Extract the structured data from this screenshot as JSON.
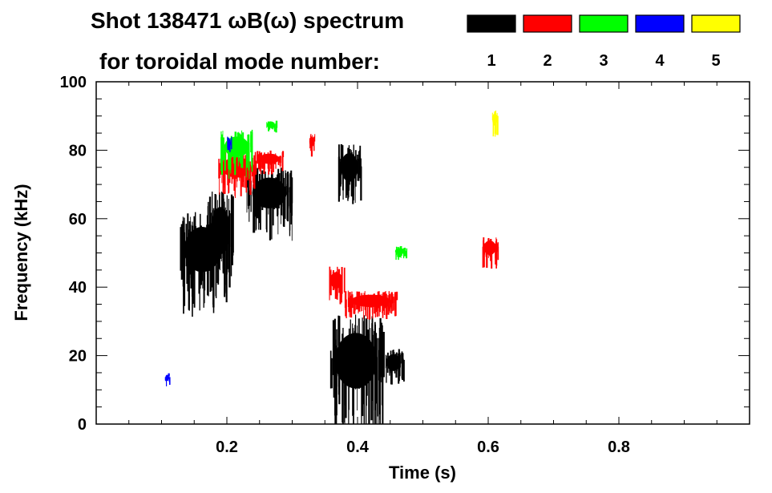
{
  "chart_data": {
    "type": "heatmap",
    "title_line1": "Shot 138471 ωB(ω) spectrum",
    "title_line2": "for toroidal mode number:",
    "xlabel": "Time (s)",
    "ylabel": "Frequency (kHz)",
    "xlim": [
      0.0,
      1.0
    ],
    "ylim": [
      0,
      100
    ],
    "x_ticks": [
      0.2,
      0.4,
      0.6,
      0.8
    ],
    "x_tick_labels": [
      "0.2",
      "0.4",
      "0.6",
      "0.8"
    ],
    "y_ticks": [
      0,
      20,
      40,
      60,
      80,
      100
    ],
    "y_tick_labels": [
      "0",
      "20",
      "40",
      "60",
      "80",
      "100"
    ],
    "legend": [
      {
        "mode": "1",
        "color": "#000000"
      },
      {
        "mode": "2",
        "color": "#ff0000"
      },
      {
        "mode": "3",
        "color": "#00ff00"
      },
      {
        "mode": "4",
        "color": "#0000ff"
      },
      {
        "mode": "5",
        "color": "#ffff00"
      }
    ],
    "series": [
      {
        "name": "n=1",
        "color": "#000000",
        "regions": [
          {
            "t0": 0.125,
            "t1": 0.2,
            "f0": 40,
            "f1": 62
          },
          {
            "t0": 0.17,
            "t1": 0.21,
            "f0": 45,
            "f1": 68
          },
          {
            "t0": 0.23,
            "t1": 0.3,
            "f0": 60,
            "f1": 75
          },
          {
            "t0": 0.37,
            "t1": 0.405,
            "f0": 68,
            "f1": 82
          },
          {
            "t0": 0.355,
            "t1": 0.44,
            "f0": 5,
            "f1": 32
          },
          {
            "t0": 0.44,
            "t1": 0.47,
            "f0": 14,
            "f1": 22
          }
        ]
      },
      {
        "name": "n=2",
        "color": "#ff0000",
        "regions": [
          {
            "t0": 0.185,
            "t1": 0.245,
            "f0": 70,
            "f1": 80
          },
          {
            "t0": 0.245,
            "t1": 0.285,
            "f0": 75,
            "f1": 80
          },
          {
            "t0": 0.325,
            "t1": 0.335,
            "f0": 80,
            "f1": 85
          },
          {
            "t0": 0.355,
            "t1": 0.38,
            "f0": 38,
            "f1": 46
          },
          {
            "t0": 0.38,
            "t1": 0.46,
            "f0": 33,
            "f1": 39
          },
          {
            "t0": 0.59,
            "t1": 0.615,
            "f0": 48,
            "f1": 55
          }
        ]
      },
      {
        "name": "n=3",
        "color": "#00ff00",
        "regions": [
          {
            "t0": 0.19,
            "t1": 0.24,
            "f0": 76,
            "f1": 86
          },
          {
            "t0": 0.26,
            "t1": 0.275,
            "f0": 86,
            "f1": 89
          },
          {
            "t0": 0.455,
            "t1": 0.475,
            "f0": 49,
            "f1": 52
          }
        ]
      },
      {
        "name": "n=4",
        "color": "#0000ff",
        "regions": [
          {
            "t0": 0.105,
            "t1": 0.112,
            "f0": 12,
            "f1": 15
          },
          {
            "t0": 0.2,
            "t1": 0.207,
            "f0": 80,
            "f1": 84
          }
        ]
      },
      {
        "name": "n=5",
        "color": "#ffff00",
        "regions": [
          {
            "t0": 0.605,
            "t1": 0.615,
            "f0": 86,
            "f1": 92
          }
        ]
      }
    ]
  }
}
